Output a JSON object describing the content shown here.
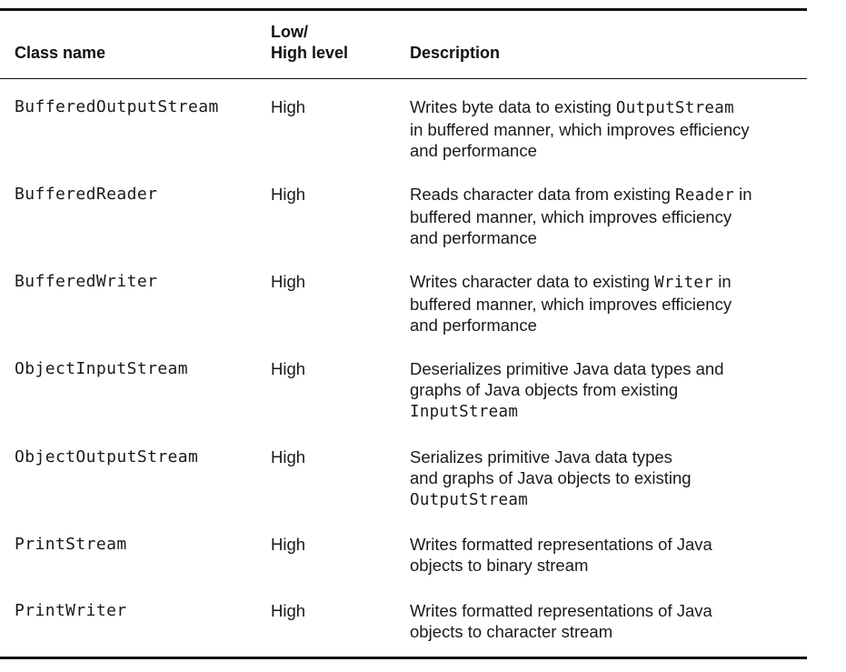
{
  "table": {
    "headers": {
      "class_name": "Class name",
      "level_line1": "Low/",
      "level_line2": "High level",
      "description": "Description"
    },
    "rows": [
      {
        "class_name": "BufferedOutputStream",
        "level": "High",
        "description": [
          [
            "Writes byte data to existing ",
            "OutputStream",
            ""
          ],
          [
            "in buffered manner, which improves efficiency"
          ],
          [
            "and performance"
          ]
        ]
      },
      {
        "class_name": "BufferedReader",
        "level": "High",
        "description": [
          [
            "Reads character data from existing ",
            "Reader",
            " in"
          ],
          [
            "buffered manner, which improves efficiency"
          ],
          [
            "and performance"
          ]
        ]
      },
      {
        "class_name": "BufferedWriter",
        "level": "High",
        "description": [
          [
            "Writes character data to existing ",
            "Writer",
            " in"
          ],
          [
            "buffered manner, which improves efficiency"
          ],
          [
            "and performance"
          ]
        ]
      },
      {
        "class_name": "ObjectInputStream",
        "level": "High",
        "description": [
          [
            "Deserializes primitive Java data types and"
          ],
          [
            "graphs of Java objects from existing"
          ],
          [
            "",
            "InputStream",
            ""
          ]
        ]
      },
      {
        "class_name": "ObjectOutputStream",
        "level": "High",
        "description": [
          [
            "Serializes primitive Java data types"
          ],
          [
            "and graphs of Java objects to existing"
          ],
          [
            "",
            "OutputStream",
            ""
          ]
        ]
      },
      {
        "class_name": "PrintStream",
        "level": "High",
        "description": [
          [
            "Writes formatted representations of Java"
          ],
          [
            "objects to binary stream"
          ]
        ]
      },
      {
        "class_name": "PrintWriter",
        "level": "High",
        "description": [
          [
            "Writes formatted representations of Java"
          ],
          [
            "objects to character stream"
          ]
        ]
      }
    ]
  }
}
